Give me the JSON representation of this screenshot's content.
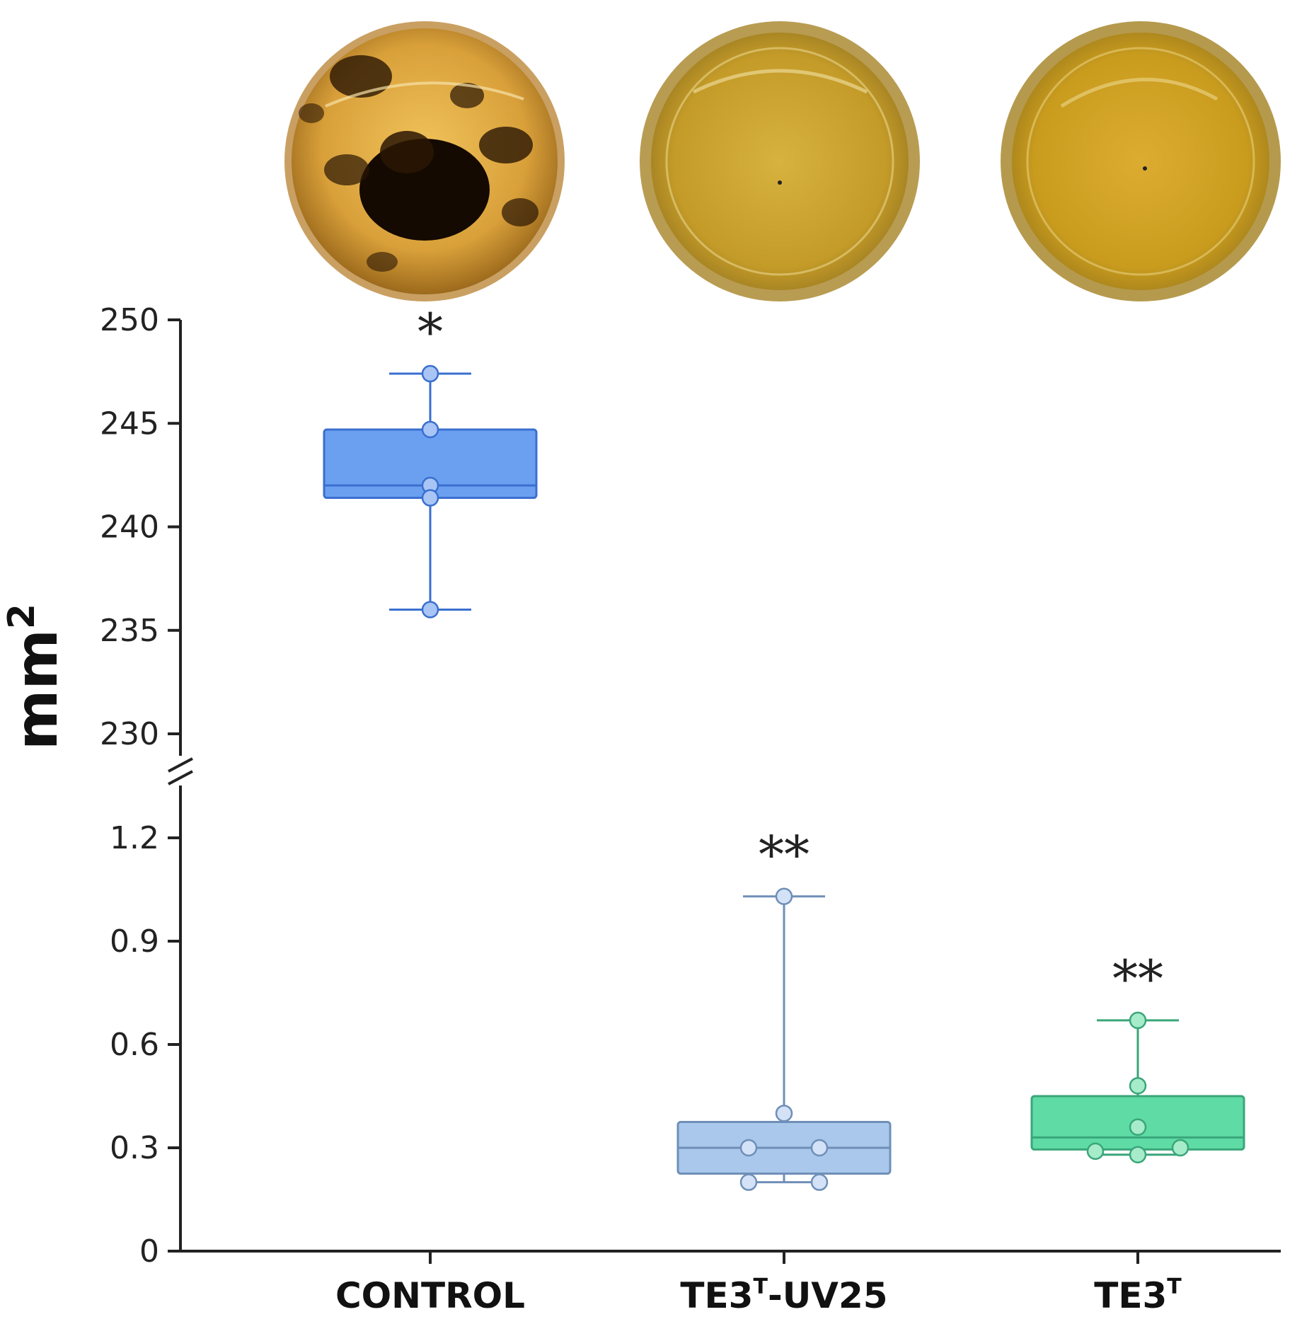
{
  "chart_data": {
    "type": "box",
    "ylabel": "mm",
    "ylabel_superscript": "2",
    "axis_break": true,
    "upper_axis": {
      "range": [
        229,
        250
      ],
      "ticks": [
        "230",
        "235",
        "240",
        "245",
        "250"
      ]
    },
    "lower_axis": {
      "range": [
        0,
        1.3
      ],
      "ticks": [
        "0",
        "0.3",
        "0.6",
        "0.9",
        "1.2"
      ]
    },
    "categories": [
      {
        "label": "CONTROL",
        "label_superscript": "",
        "label_suffix": ""
      },
      {
        "label": "TE3",
        "label_superscript": "T",
        "label_suffix": "-UV25"
      },
      {
        "label": "TE3",
        "label_superscript": "T",
        "label_suffix": ""
      }
    ],
    "series": [
      {
        "name": "CONTROL",
        "axis": "upper",
        "box": {
          "q1": 241.4,
          "median": 242.0,
          "q3": 244.7,
          "whisker_low": 236.0,
          "whisker_high": 247.4
        },
        "points": [
          247.4,
          244.7,
          242.0,
          241.4,
          236.0
        ],
        "point_offsets": [
          0,
          0,
          0,
          0,
          0
        ],
        "fill": "#6b9ff0",
        "stroke": "#3a6fd0",
        "point_fill": "#a9c5f5",
        "significance": "*"
      },
      {
        "name": "TE3T-UV25",
        "axis": "lower",
        "box": {
          "q1": 0.225,
          "median": 0.3,
          "q3": 0.375,
          "whisker_low": 0.2,
          "whisker_high": 1.03
        },
        "points": [
          1.03,
          0.4,
          0.3,
          0.3,
          0.2,
          0.2
        ],
        "point_offsets": [
          0,
          0,
          -0.5,
          0.5,
          -0.5,
          0.5
        ],
        "fill": "#a9c8ec",
        "stroke": "#6f8fb8",
        "point_fill": "#d3e2f6",
        "significance": "**"
      },
      {
        "name": "TE3T",
        "axis": "lower",
        "box": {
          "q1": 0.295,
          "median": 0.33,
          "q3": 0.45,
          "whisker_low": 0.28,
          "whisker_high": 0.67
        },
        "points": [
          0.67,
          0.48,
          0.36,
          0.29,
          0.28,
          0.3
        ],
        "point_offsets": [
          0,
          0,
          0,
          -0.6,
          0,
          0.6
        ],
        "fill": "#5fdca6",
        "stroke": "#3aa67a",
        "point_fill": "#a6ecca",
        "significance": "**"
      }
    ],
    "dish_photos": [
      {
        "group": "CONTROL",
        "description": "petri dish with dark growth"
      },
      {
        "group": "TE3T-UV25",
        "description": "petri dish clear"
      },
      {
        "group": "TE3T",
        "description": "petri dish clear"
      }
    ]
  }
}
